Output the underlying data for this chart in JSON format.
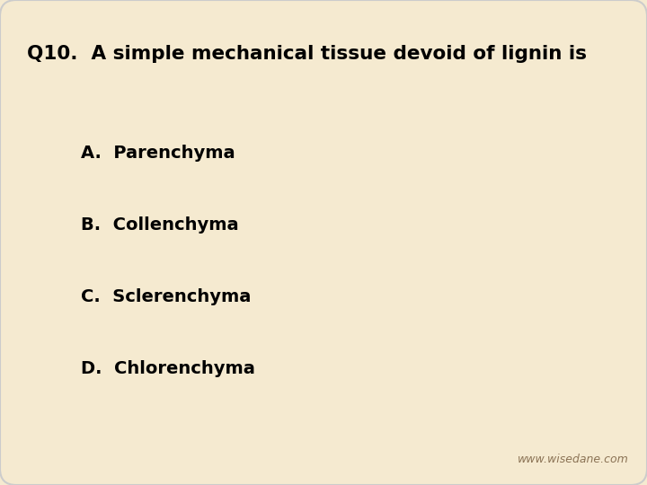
{
  "title": "Q10.  A simple mechanical tissue devoid of lignin is",
  "options": [
    "A.  Parenchyma",
    "B.  Collenchyma",
    "C.  Sclerenchyma",
    "D.  Chlorenchyma"
  ],
  "bg_color": "#f5ead0",
  "card_color": "#f5ead0",
  "border_color": "#cccccc",
  "title_color": "#000000",
  "option_color": "#000000",
  "watermark": "www.wisedane.com",
  "watermark_color": "#8B7355",
  "title_fontsize": 15.5,
  "option_fontsize": 14,
  "watermark_fontsize": 9
}
